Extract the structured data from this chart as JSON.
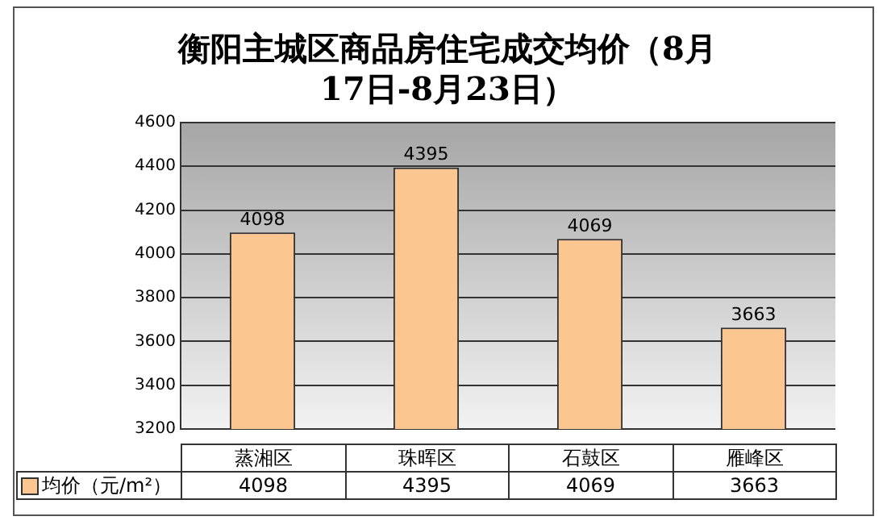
{
  "chart_data": {
    "type": "bar",
    "title": "衡阳主城区商品房住宅成交均价（8月17日-8月23日）",
    "categories": [
      "蒸湘区",
      "珠晖区",
      "石鼓区",
      "雁峰区"
    ],
    "series": [
      {
        "name": "均价（元/m²）",
        "color": "#fcc690",
        "values": [
          4098,
          4395,
          4069,
          3663
        ],
        "value_labels": [
          "4098",
          "4395",
          "4069",
          "3663"
        ]
      }
    ],
    "ylim": [
      3200,
      4600
    ],
    "yticks": [
      3200,
      3400,
      3600,
      3800,
      4000,
      4200,
      4400,
      4600
    ],
    "grid": "y",
    "data_labels": true,
    "annotations": [
      "4098",
      "4395",
      "4069",
      "3663"
    ]
  }
}
